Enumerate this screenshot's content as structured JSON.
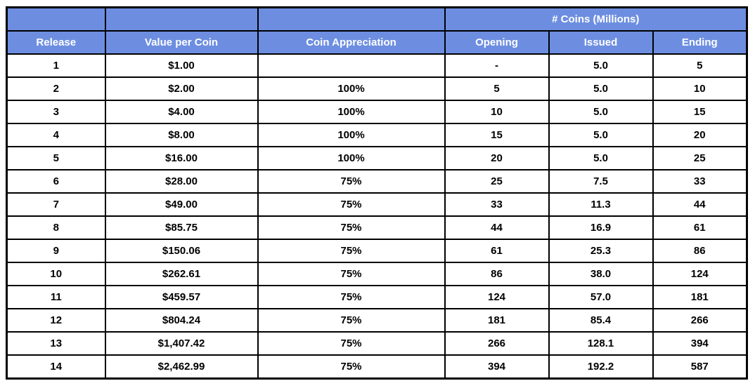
{
  "chart_data": {
    "type": "table",
    "group_header_label": "# Coins (Millions)",
    "group_header_spans": [
      "Opening",
      "Issued",
      "Ending"
    ],
    "columns": [
      "Release",
      "Value per Coin",
      "Coin Appreciation",
      "Opening",
      "Issued",
      "Ending"
    ],
    "rows": [
      [
        "1",
        "$1.00",
        "",
        "-",
        "5.0",
        "5"
      ],
      [
        "2",
        "$2.00",
        "100%",
        "5",
        "5.0",
        "10"
      ],
      [
        "3",
        "$4.00",
        "100%",
        "10",
        "5.0",
        "15"
      ],
      [
        "4",
        "$8.00",
        "100%",
        "15",
        "5.0",
        "20"
      ],
      [
        "5",
        "$16.00",
        "100%",
        "20",
        "5.0",
        "25"
      ],
      [
        "6",
        "$28.00",
        "75%",
        "25",
        "7.5",
        "33"
      ],
      [
        "7",
        "$49.00",
        "75%",
        "33",
        "11.3",
        "44"
      ],
      [
        "8",
        "$85.75",
        "75%",
        "44",
        "16.9",
        "61"
      ],
      [
        "9",
        "$150.06",
        "75%",
        "61",
        "25.3",
        "86"
      ],
      [
        "10",
        "$262.61",
        "75%",
        "86",
        "38.0",
        "124"
      ],
      [
        "11",
        "$459.57",
        "75%",
        "124",
        "57.0",
        "181"
      ],
      [
        "12",
        "$804.24",
        "75%",
        "181",
        "85.4",
        "266"
      ],
      [
        "13",
        "$1,407.42",
        "75%",
        "266",
        "128.1",
        "394"
      ],
      [
        "14",
        "$2,462.99",
        "75%",
        "394",
        "192.2",
        "587"
      ]
    ]
  },
  "colors": {
    "header_background": "#6D8EE0",
    "header_text": "#FFFFFF",
    "cell_text": "#000000",
    "border": "#000000",
    "page_background": "#FFFFFF"
  }
}
